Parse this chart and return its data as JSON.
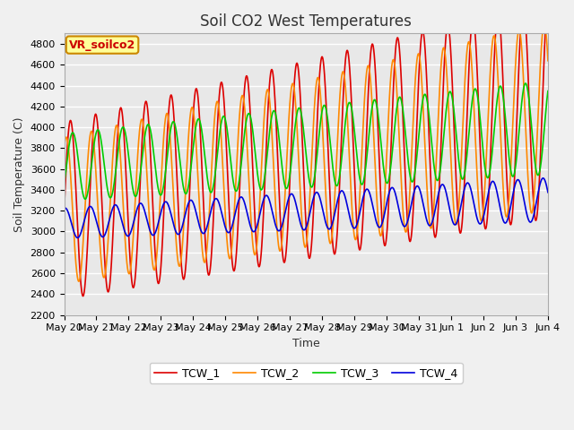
{
  "title": "Soil CO2 West Temperatures",
  "xlabel": "Time",
  "ylabel": "Soil Temperature (C)",
  "ylim": [
    2200,
    4900
  ],
  "xlim_days": 15,
  "fig_bg": "#f0f0f0",
  "plot_bg": "#e8e8e8",
  "grid_color": "#ffffff",
  "annotation_label": "VR_soilco2",
  "annotation_box_color": "#ffff99",
  "annotation_border_color": "#cc8800",
  "series": [
    {
      "name": "TCW_1",
      "color": "#dd0000",
      "phase": 0.0,
      "base_amp": 850,
      "amp_trend": 200,
      "base_mid": 3200,
      "mid_trend": 65
    },
    {
      "name": "TCW_2",
      "color": "#ff8800",
      "phase": 1.05,
      "base_amp": 700,
      "amp_trend": 200,
      "base_mid": 3200,
      "mid_trend": 60
    },
    {
      "name": "TCW_3",
      "color": "#00cc00",
      "phase": -0.55,
      "base_amp": 320,
      "amp_trend": 130,
      "base_mid": 3620,
      "mid_trend": 25
    },
    {
      "name": "TCW_4",
      "color": "#0000dd",
      "phase": 1.35,
      "base_amp": 145,
      "amp_trend": 65,
      "base_mid": 3080,
      "mid_trend": 15
    }
  ],
  "x_tick_labels": [
    "May 20",
    "May 21",
    "May 22",
    "May 23",
    "May 24",
    "May 25",
    "May 26",
    "May 27",
    "May 28",
    "May 29",
    "May 30",
    "May 31",
    "Jun 1",
    "Jun 2",
    "Jun 3",
    "Jun 4"
  ],
  "period_days": 0.78,
  "n_points": 3000,
  "legend_fontsize": 9,
  "title_fontsize": 12,
  "tick_fontsize": 8,
  "ylabel_fontsize": 9,
  "xlabel_fontsize": 9
}
